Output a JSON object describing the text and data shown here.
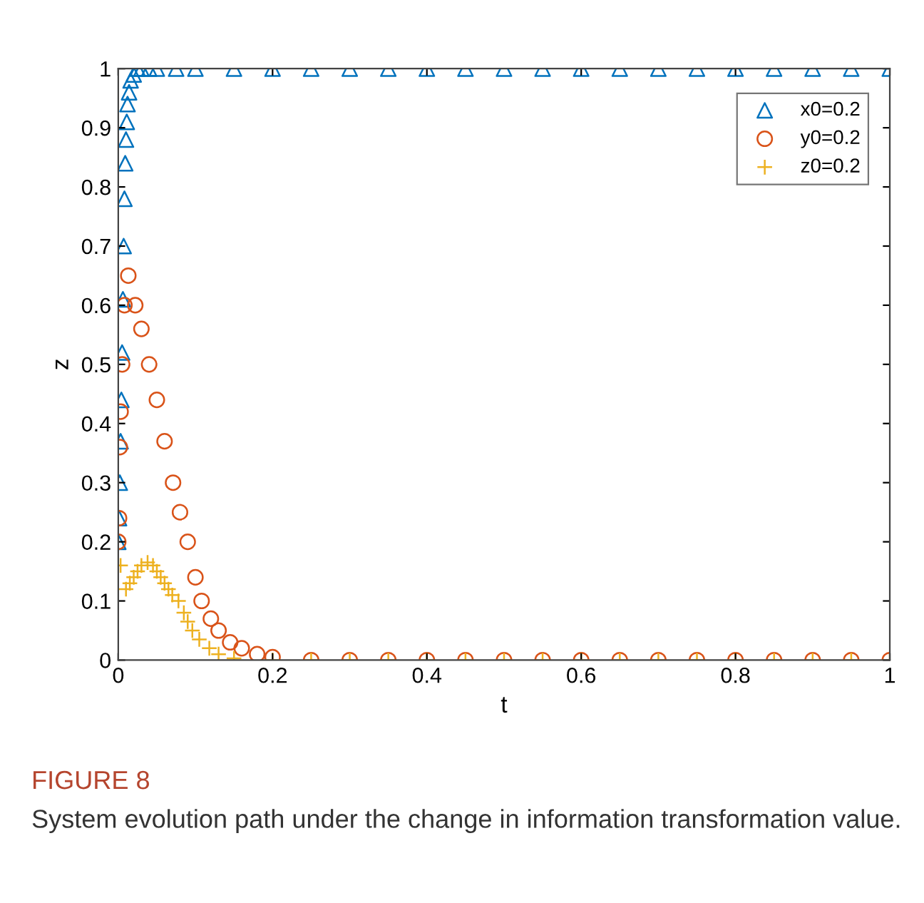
{
  "chart_data": {
    "type": "scatter",
    "xlabel": "t",
    "ylabel": "z",
    "xlim": [
      0,
      1
    ],
    "ylim": [
      0,
      1
    ],
    "xticks": [
      0,
      0.2,
      0.4,
      0.6,
      0.8,
      1
    ],
    "yticks": [
      0,
      0.1,
      0.2,
      0.3,
      0.4,
      0.5,
      0.6,
      0.7,
      0.8,
      0.9,
      1
    ],
    "grid": false,
    "legend": "top right",
    "annotations": [
      "FIGURE 8",
      "System evolution path under the change in information transformation value."
    ],
    "series": [
      {
        "name": "x0=0.2",
        "color": "#0072bd",
        "marker": "triangle",
        "x": [
          0,
          0.001,
          0.002,
          0.003,
          0.004,
          0.005,
          0.006,
          0.007,
          0.008,
          0.009,
          0.01,
          0.011,
          0.012,
          0.014,
          0.016,
          0.02,
          0.025,
          0.03,
          0.04,
          0.05,
          0.075,
          0.1,
          0.15,
          0.2,
          0.25,
          0.3,
          0.35,
          0.4,
          0.45,
          0.5,
          0.55,
          0.6,
          0.65,
          0.7,
          0.75,
          0.8,
          0.85,
          0.9,
          0.95,
          1
        ],
        "values": [
          0.2,
          0.24,
          0.3,
          0.37,
          0.44,
          0.52,
          0.61,
          0.7,
          0.78,
          0.84,
          0.88,
          0.91,
          0.94,
          0.96,
          0.98,
          0.99,
          1,
          1,
          1,
          1,
          1,
          1,
          1,
          1,
          1,
          1,
          1,
          1,
          1,
          1,
          1,
          1,
          1,
          1,
          1,
          1,
          1,
          1,
          1,
          1
        ]
      },
      {
        "name": "y0=0.2",
        "color": "#d95319",
        "marker": "circle",
        "x": [
          0,
          0.001,
          0.002,
          0.003,
          0.005,
          0.008,
          0.013,
          0.022,
          0.03,
          0.04,
          0.05,
          0.06,
          0.071,
          0.08,
          0.09,
          0.1,
          0.108,
          0.12,
          0.13,
          0.145,
          0.16,
          0.18,
          0.2,
          0.25,
          0.3,
          0.35,
          0.4,
          0.45,
          0.5,
          0.55,
          0.6,
          0.65,
          0.7,
          0.75,
          0.8,
          0.85,
          0.9,
          0.95,
          1
        ],
        "values": [
          0.2,
          0.24,
          0.36,
          0.42,
          0.5,
          0.6,
          0.65,
          0.6,
          0.56,
          0.5,
          0.44,
          0.37,
          0.3,
          0.25,
          0.2,
          0.14,
          0.1,
          0.07,
          0.05,
          0.03,
          0.02,
          0.01,
          0.005,
          0,
          0,
          0,
          0,
          0,
          0,
          0,
          0,
          0,
          0,
          0,
          0,
          0,
          0,
          0,
          0
        ]
      },
      {
        "name": "z0=0.2",
        "color": "#edb120",
        "marker": "cross",
        "x": [
          0.003,
          0.01,
          0.015,
          0.02,
          0.025,
          0.03,
          0.038,
          0.045,
          0.05,
          0.055,
          0.06,
          0.065,
          0.07,
          0.078,
          0.085,
          0.09,
          0.096,
          0.105,
          0.118,
          0.13,
          0.15,
          0.2,
          0.25,
          0.3,
          0.35,
          0.4,
          0.45,
          0.5,
          0.55,
          0.6,
          0.65,
          0.7,
          0.75,
          0.8,
          0.85,
          0.9,
          0.95,
          1
        ],
        "values": [
          0.16,
          0.12,
          0.13,
          0.14,
          0.15,
          0.16,
          0.165,
          0.16,
          0.15,
          0.14,
          0.13,
          0.12,
          0.11,
          0.1,
          0.08,
          0.065,
          0.05,
          0.035,
          0.02,
          0.01,
          0.003,
          0,
          0,
          0,
          0,
          0,
          0,
          0,
          0,
          0,
          0,
          0,
          0,
          0,
          0,
          0,
          0,
          0
        ]
      }
    ]
  }
}
